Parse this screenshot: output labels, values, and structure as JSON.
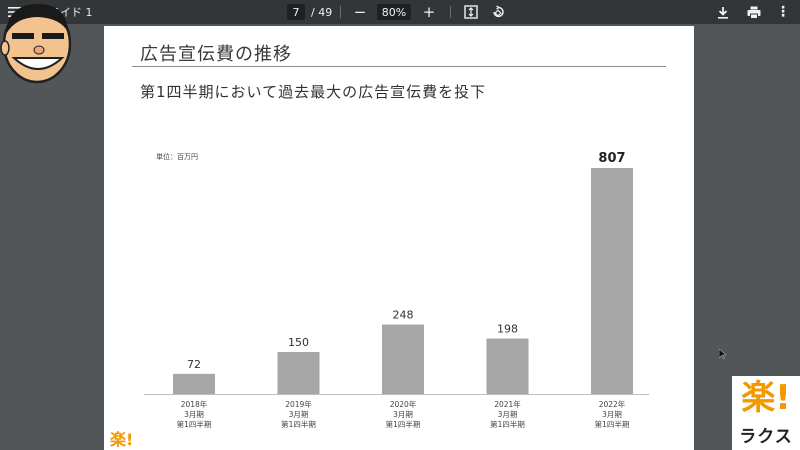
{
  "toolbar": {
    "title": "スライド 1",
    "page_current": "7",
    "page_total": "/ 49",
    "zoom": "80%",
    "zoom_out_symbol": "−",
    "zoom_in_symbol": "+",
    "more_symbol": "⋮"
  },
  "slide": {
    "title": "広告宣伝費の推移",
    "subtitle": "第1四半期において過去最大の広告宣伝費を投下",
    "unit_label": "単位：百万円",
    "corner_logo": "楽!"
  },
  "chart_data": {
    "type": "bar",
    "categories": [
      [
        "2018年",
        "3月期",
        "第1四半期"
      ],
      [
        "2019年",
        "3月期",
        "第1四半期"
      ],
      [
        "2020年",
        "3月期",
        "第1四半期"
      ],
      [
        "2021年",
        "3月期",
        "第1四半期"
      ],
      [
        "2022年",
        "3月期",
        "第1四半期"
      ]
    ],
    "values": [
      72,
      150,
      248,
      198,
      807
    ],
    "value_labels": [
      "72",
      "150",
      "248",
      "198",
      "807"
    ],
    "highlight_last_label": true,
    "bar_color": "#a6a6a6",
    "ylim": [
      0,
      807
    ],
    "grid": false,
    "legend": "none"
  },
  "brand": {
    "mark": "楽!",
    "name": "ラクス",
    "accent": "#f39800"
  }
}
